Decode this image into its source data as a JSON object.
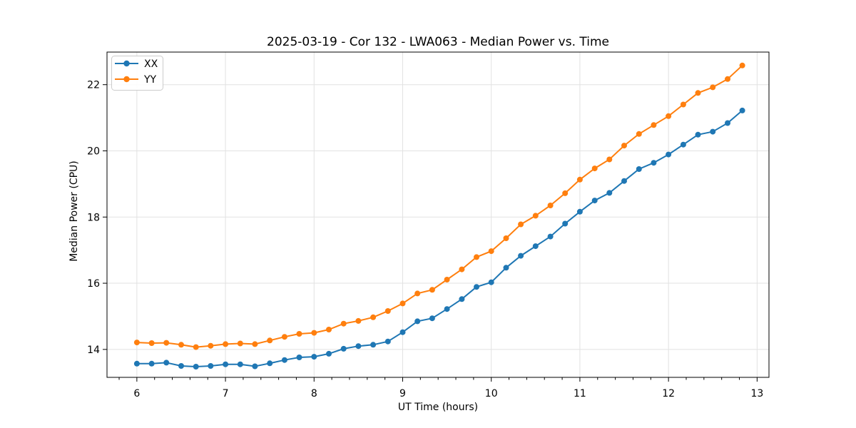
{
  "chart_data": {
    "type": "line",
    "title": "2025-03-19 - Cor 132 - LWA063 - Median Power vs. Time",
    "xlabel": "UT Time (hours)",
    "ylabel": "Median Power (CPU)",
    "xlim": [
      5.663,
      13.134
    ],
    "ylim": [
      13.156,
      22.985
    ],
    "x_ticks": [
      6,
      7,
      8,
      9,
      10,
      11,
      12,
      13
    ],
    "y_ticks": [
      14,
      16,
      18,
      20,
      22
    ],
    "x_minor_tick_step": 0.2,
    "grid": true,
    "legend_position": "upper left",
    "marker": "circle",
    "x": [
      6.0,
      6.167,
      6.333,
      6.5,
      6.667,
      6.833,
      7.0,
      7.167,
      7.333,
      7.5,
      7.667,
      7.833,
      8.0,
      8.167,
      8.333,
      8.5,
      8.667,
      8.833,
      9.0,
      9.167,
      9.333,
      9.5,
      9.667,
      9.833,
      10.0,
      10.167,
      10.333,
      10.5,
      10.667,
      10.833,
      11.0,
      11.167,
      11.333,
      11.5,
      11.667,
      11.833,
      12.0,
      12.167,
      12.333,
      12.5,
      12.667,
      12.833
    ],
    "series": [
      {
        "name": "XX",
        "color": "#1f77b4",
        "values": [
          13.57,
          13.57,
          13.6,
          13.5,
          13.48,
          13.5,
          13.55,
          13.55,
          13.49,
          13.58,
          13.68,
          13.76,
          13.78,
          13.87,
          14.02,
          14.1,
          14.14,
          14.24,
          14.52,
          14.85,
          14.94,
          15.22,
          15.52,
          15.89,
          16.03,
          16.47,
          16.83,
          17.12,
          17.41,
          17.8,
          18.16,
          18.5,
          18.73,
          19.09,
          19.45,
          19.64,
          19.89,
          20.19,
          20.49,
          20.58,
          20.84,
          21.22
        ]
      },
      {
        "name": "YY",
        "color": "#ff7f0e",
        "values": [
          14.21,
          14.19,
          14.2,
          14.14,
          14.07,
          14.11,
          14.16,
          14.18,
          14.16,
          14.27,
          14.38,
          14.47,
          14.5,
          14.6,
          14.78,
          14.86,
          14.97,
          15.16,
          15.39,
          15.69,
          15.8,
          16.11,
          16.42,
          16.79,
          16.97,
          17.36,
          17.78,
          18.04,
          18.35,
          18.72,
          19.13,
          19.47,
          19.74,
          20.16,
          20.51,
          20.78,
          21.05,
          21.4,
          21.75,
          21.92,
          22.17,
          22.58
        ]
      }
    ]
  }
}
